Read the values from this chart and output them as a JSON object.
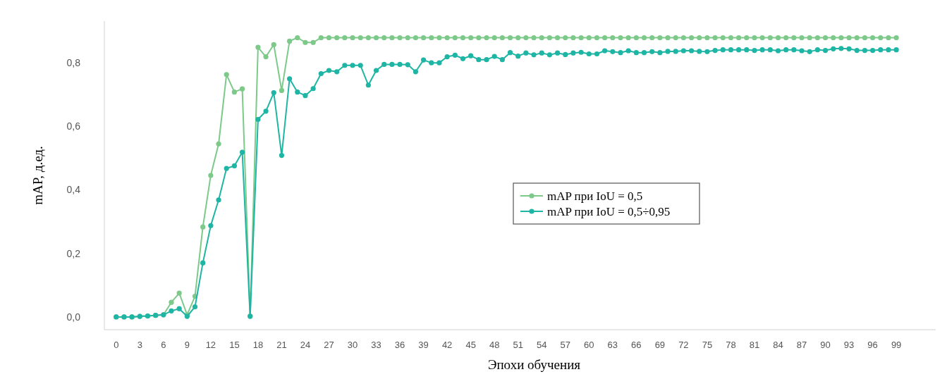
{
  "chart_data": {
    "type": "line",
    "xlabel": "Эпохи обучения",
    "ylabel": "mAP, д.ед.",
    "x": [
      0,
      1,
      2,
      3,
      4,
      5,
      6,
      7,
      8,
      9,
      10,
      11,
      12,
      13,
      14,
      15,
      16,
      17,
      18,
      19,
      20,
      21,
      22,
      23,
      24,
      25,
      26,
      27,
      28,
      29,
      30,
      31,
      32,
      33,
      34,
      35,
      36,
      37,
      38,
      39,
      40,
      41,
      42,
      43,
      44,
      45,
      46,
      47,
      48,
      49,
      50,
      51,
      52,
      53,
      54,
      55,
      56,
      57,
      58,
      59,
      60,
      61,
      62,
      63,
      64,
      65,
      66,
      67,
      68,
      69,
      70,
      71,
      72,
      73,
      74,
      75,
      76,
      77,
      78,
      79,
      80,
      81,
      82,
      83,
      84,
      85,
      86,
      87,
      88,
      89,
      90,
      91,
      92,
      93,
      94,
      95,
      96,
      97,
      98,
      99
    ],
    "series": [
      {
        "name": "mAP при IoU = 0,5",
        "color": "#7dc98a",
        "values": [
          0,
          0,
          0,
          0.002,
          0.003,
          0.005,
          0.007,
          0.046,
          0.075,
          0.007,
          0.065,
          0.283,
          0.445,
          0.544,
          0.762,
          0.707,
          0.717,
          0.003,
          0.848,
          0.818,
          0.856,
          0.712,
          0.867,
          0.878,
          0.863,
          0.863,
          0.878,
          0.878,
          0.878,
          0.878,
          0.878,
          0.878,
          0.878,
          0.878,
          0.878,
          0.878,
          0.878,
          0.878,
          0.878,
          0.878,
          0.878,
          0.878,
          0.878,
          0.878,
          0.878,
          0.878,
          0.878,
          0.878,
          0.878,
          0.878,
          0.878,
          0.878,
          0.878,
          0.878,
          0.878,
          0.878,
          0.878,
          0.878,
          0.878,
          0.878,
          0.878,
          0.878,
          0.878,
          0.878,
          0.878,
          0.878,
          0.878,
          0.878,
          0.878,
          0.878,
          0.878,
          0.878,
          0.878,
          0.878,
          0.878,
          0.878,
          0.878,
          0.878,
          0.878,
          0.878,
          0.878,
          0.878,
          0.878,
          0.878,
          0.878,
          0.878,
          0.878,
          0.878,
          0.878,
          0.878,
          0.878,
          0.878,
          0.878,
          0.878,
          0.878,
          0.878,
          0.878,
          0.878,
          0.878,
          0.878
        ]
      },
      {
        "name": "mAP при IoU = 0,5÷0,95",
        "color": "#1fb5a5",
        "values": [
          0,
          0,
          0,
          0.002,
          0.003,
          0.005,
          0.007,
          0.019,
          0.026,
          0.002,
          0.032,
          0.17,
          0.287,
          0.368,
          0.467,
          0.475,
          0.518,
          0.002,
          0.621,
          0.647,
          0.705,
          0.508,
          0.749,
          0.707,
          0.696,
          0.718,
          0.765,
          0.775,
          0.771,
          0.791,
          0.791,
          0.791,
          0.729,
          0.775,
          0.794,
          0.794,
          0.794,
          0.793,
          0.771,
          0.808,
          0.799,
          0.799,
          0.818,
          0.823,
          0.812,
          0.821,
          0.809,
          0.809,
          0.819,
          0.809,
          0.831,
          0.82,
          0.83,
          0.824,
          0.83,
          0.824,
          0.83,
          0.825,
          0.83,
          0.832,
          0.827,
          0.827,
          0.837,
          0.834,
          0.831,
          0.837,
          0.831,
          0.831,
          0.834,
          0.831,
          0.835,
          0.835,
          0.837,
          0.837,
          0.835,
          0.834,
          0.838,
          0.84,
          0.84,
          0.84,
          0.84,
          0.838,
          0.84,
          0.84,
          0.837,
          0.84,
          0.84,
          0.837,
          0.834,
          0.84,
          0.838,
          0.843,
          0.844,
          0.843,
          0.838,
          0.838,
          0.838,
          0.84,
          0.84,
          0.84
        ]
      }
    ],
    "xlim": [
      -1.5,
      104
    ],
    "xticks": [
      0,
      3,
      6,
      9,
      12,
      15,
      18,
      21,
      24,
      27,
      30,
      33,
      36,
      39,
      42,
      45,
      48,
      51,
      54,
      57,
      60,
      63,
      66,
      69,
      72,
      75,
      78,
      81,
      84,
      87,
      90,
      93,
      96,
      99
    ],
    "ylim": [
      -0.04,
      0.93
    ],
    "yticks": [
      {
        "value": 0,
        "label": "0,0"
      },
      {
        "value": 0.2,
        "label": "0,2"
      },
      {
        "value": 0.4,
        "label": "0,4"
      },
      {
        "value": 0.6,
        "label": "0,6"
      },
      {
        "value": 0.8,
        "label": "0,8"
      }
    ],
    "marker": "circle",
    "line_style": "solid",
    "grid": false,
    "legend": "right"
  }
}
